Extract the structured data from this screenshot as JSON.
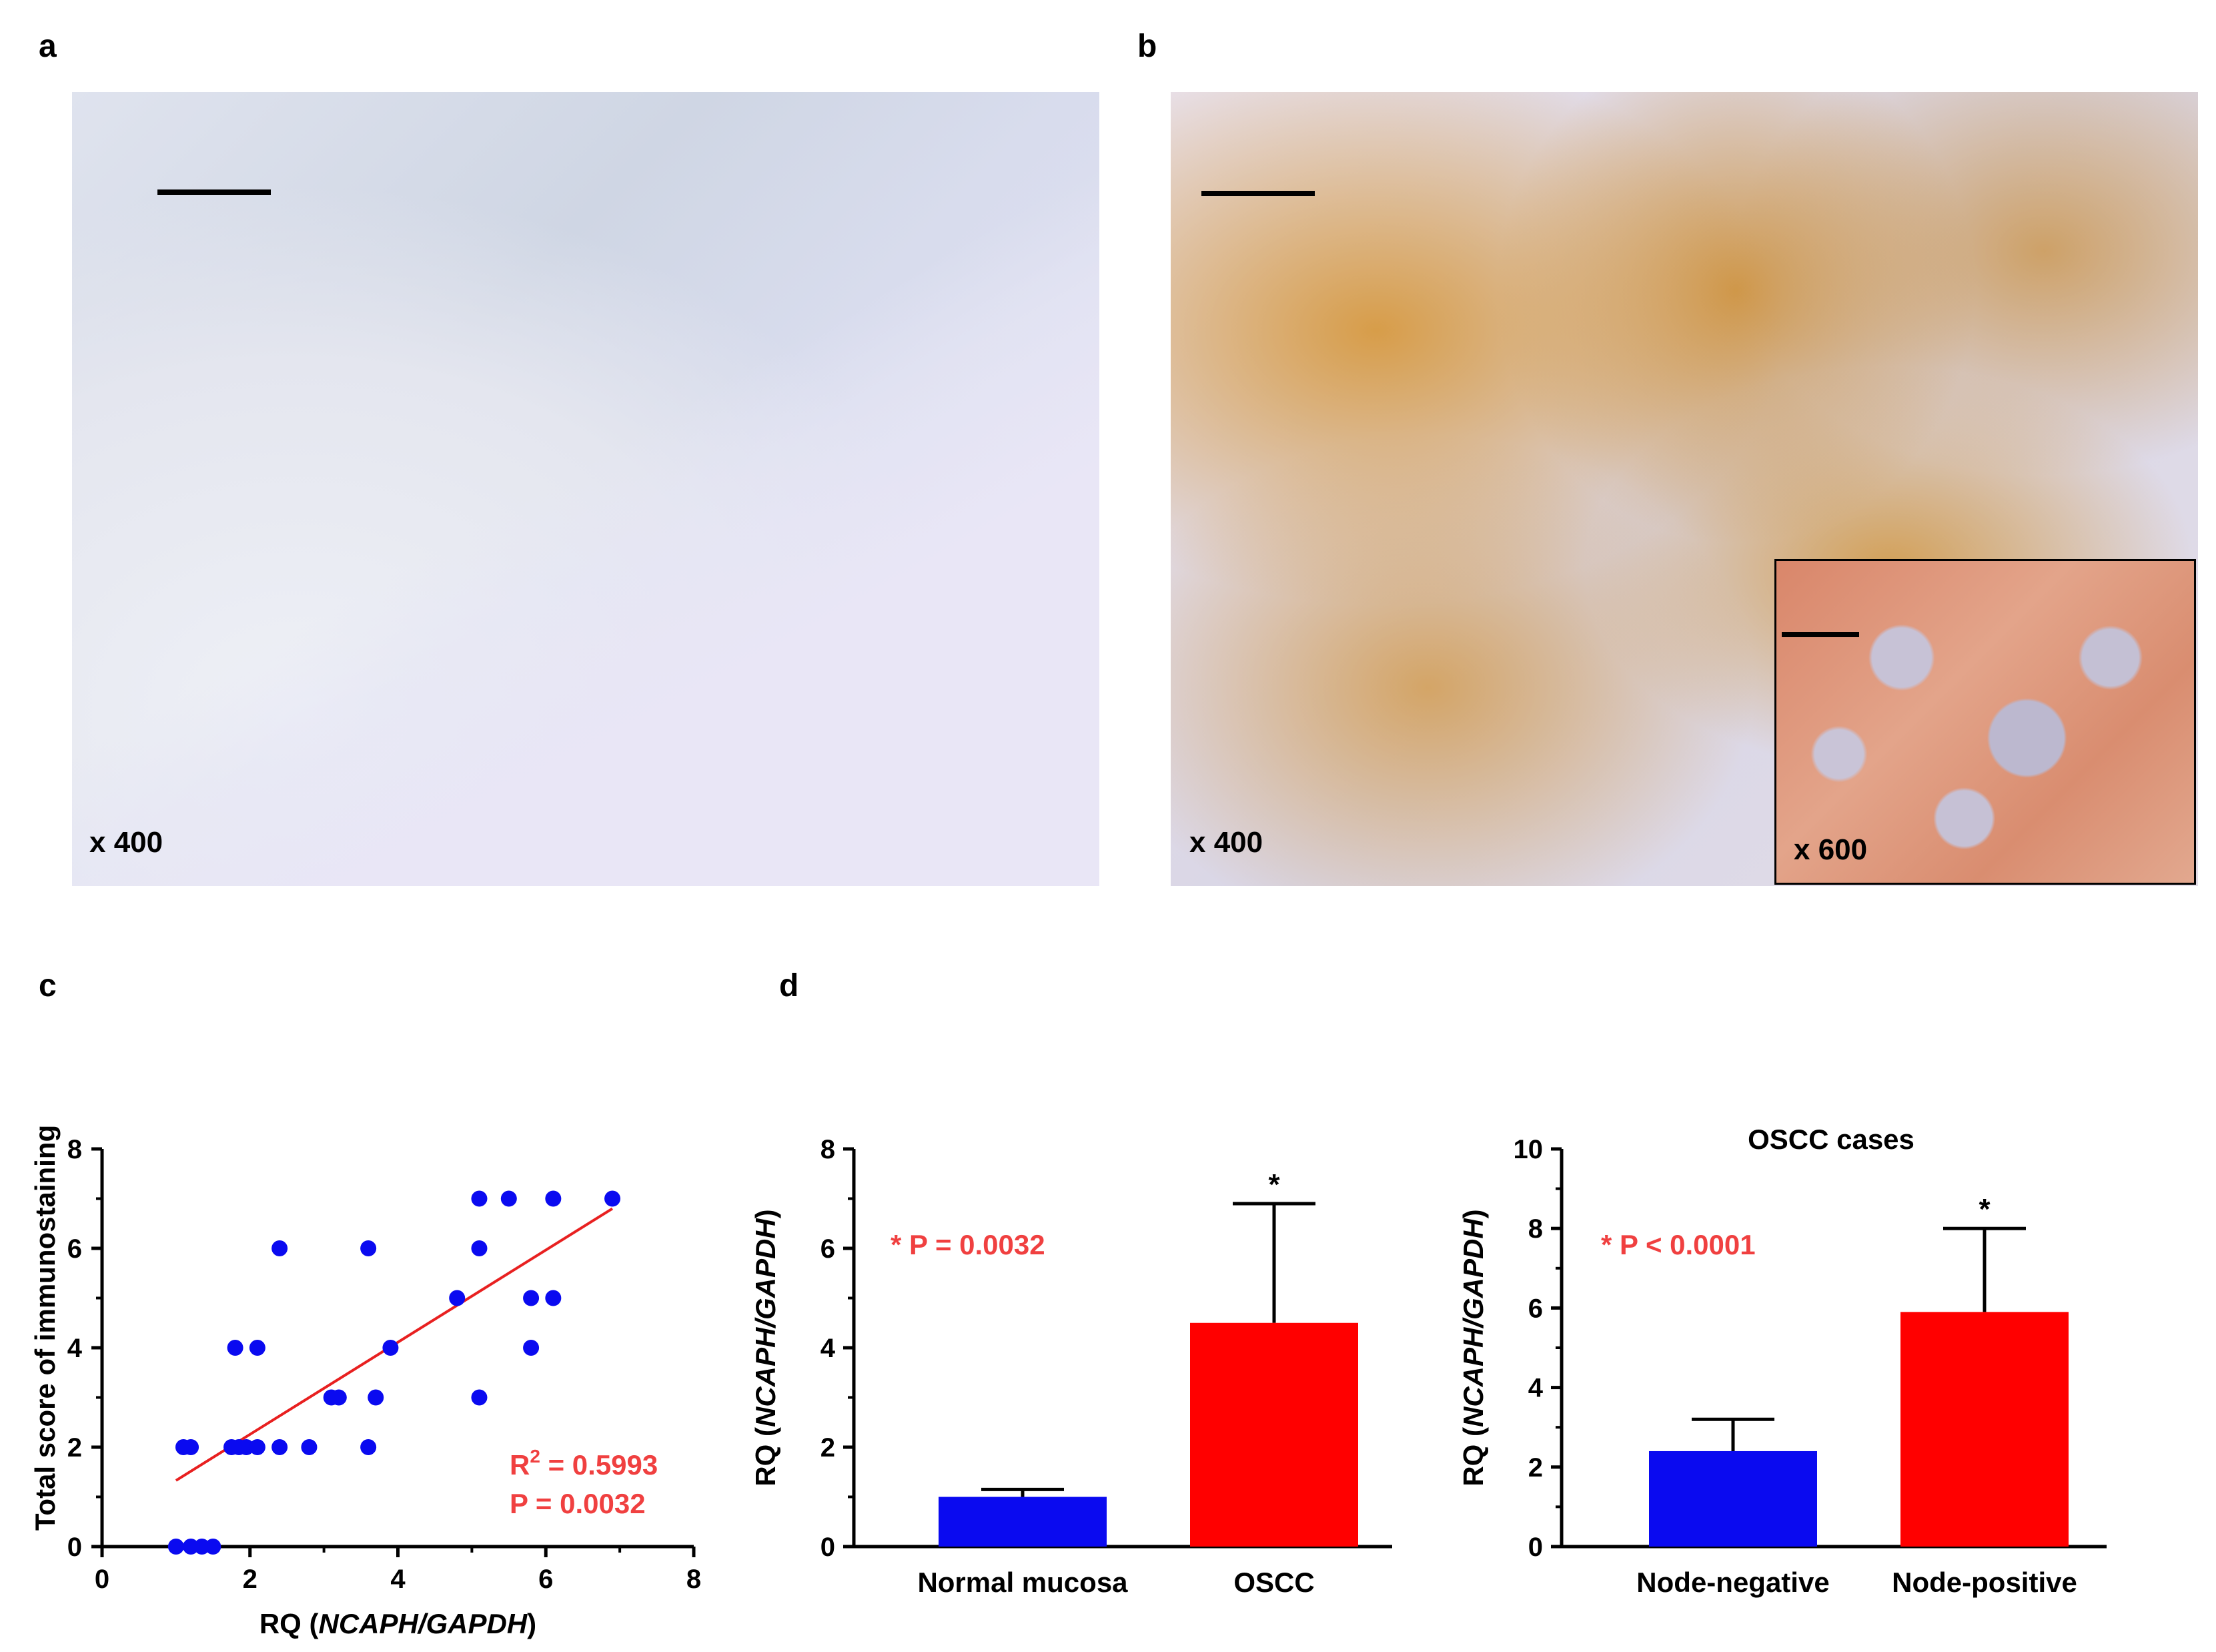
{
  "panels": {
    "a": {
      "letter": "a",
      "magnification": "x 400"
    },
    "b": {
      "letter": "b",
      "magnification": "x 400",
      "inset_magnification": "x 600"
    },
    "c": {
      "letter": "c"
    },
    "d": {
      "letter": "d"
    }
  },
  "colors": {
    "blue": "#0a0af0",
    "red": "#ff0000",
    "annotation": "#f04040",
    "fit_line": "#e82020"
  },
  "chart_data": [
    {
      "id": "c",
      "type": "scatter",
      "title": "",
      "xlabel_prefix": "RQ (",
      "xlabel_italic": "NCAPH/GAPDH",
      "xlabel_suffix": ")",
      "ylabel": "Total score of immunostaining",
      "xlim": [
        0,
        8
      ],
      "ylim": [
        0,
        8
      ],
      "xticks": [
        "0",
        "2",
        "4",
        "6",
        "8"
      ],
      "yticks": [
        "0",
        "2",
        "4",
        "6",
        "8"
      ],
      "points": [
        {
          "x": 1.0,
          "y": 0
        },
        {
          "x": 1.2,
          "y": 0
        },
        {
          "x": 1.35,
          "y": 0
        },
        {
          "x": 1.5,
          "y": 0
        },
        {
          "x": 1.1,
          "y": 2
        },
        {
          "x": 1.2,
          "y": 2
        },
        {
          "x": 1.75,
          "y": 2
        },
        {
          "x": 1.85,
          "y": 2
        },
        {
          "x": 1.95,
          "y": 2
        },
        {
          "x": 2.1,
          "y": 2
        },
        {
          "x": 2.4,
          "y": 2
        },
        {
          "x": 2.8,
          "y": 2
        },
        {
          "x": 3.6,
          "y": 2
        },
        {
          "x": 1.8,
          "y": 4
        },
        {
          "x": 2.1,
          "y": 4
        },
        {
          "x": 2.4,
          "y": 6
        },
        {
          "x": 3.1,
          "y": 3
        },
        {
          "x": 3.2,
          "y": 3
        },
        {
          "x": 3.7,
          "y": 3
        },
        {
          "x": 5.1,
          "y": 3
        },
        {
          "x": 3.6,
          "y": 6
        },
        {
          "x": 3.9,
          "y": 4
        },
        {
          "x": 4.8,
          "y": 5
        },
        {
          "x": 5.1,
          "y": 6
        },
        {
          "x": 5.1,
          "y": 7
        },
        {
          "x": 5.5,
          "y": 7
        },
        {
          "x": 5.8,
          "y": 4
        },
        {
          "x": 5.8,
          "y": 5
        },
        {
          "x": 6.1,
          "y": 5
        },
        {
          "x": 6.1,
          "y": 7
        },
        {
          "x": 6.9,
          "y": 7
        }
      ],
      "fit_line": {
        "x": [
          1.0,
          6.9
        ],
        "y": [
          1.33,
          6.8
        ]
      },
      "r2_label": "R",
      "r2_sup": "2",
      "r2_value": " = 0.5993",
      "p_label": "P = 0.0032"
    },
    {
      "id": "d1",
      "type": "bar",
      "title": "",
      "categories": [
        "Normal mucosa",
        "OSCC"
      ],
      "values": [
        1.0,
        4.5
      ],
      "errors": [
        0.15,
        2.4
      ],
      "bar_colors": [
        "#0a0af0",
        "#ff0000"
      ],
      "significance": [
        "",
        "*"
      ],
      "ylabel_prefix": "RQ (",
      "ylabel_italic": "NCAPH/GAPDH",
      "ylabel_suffix": ")",
      "ylim": [
        0,
        8
      ],
      "yticks": [
        "0",
        "2",
        "4",
        "6",
        "8"
      ],
      "annotation": "* P = 0.0032"
    },
    {
      "id": "d2",
      "type": "bar",
      "title": "OSCC cases",
      "categories": [
        "Node-negative",
        "Node-positive"
      ],
      "values": [
        2.4,
        5.9
      ],
      "errors": [
        0.8,
        2.1
      ],
      "bar_colors": [
        "#0a0af0",
        "#ff0000"
      ],
      "significance": [
        "",
        "*"
      ],
      "ylabel_prefix": "RQ (",
      "ylabel_italic": "NCAPH/GAPDH",
      "ylabel_suffix": ")",
      "ylim": [
        0,
        10
      ],
      "yticks": [
        "0",
        "2",
        "4",
        "6",
        "8",
        "10"
      ],
      "annotation": "* P < 0.0001"
    }
  ]
}
